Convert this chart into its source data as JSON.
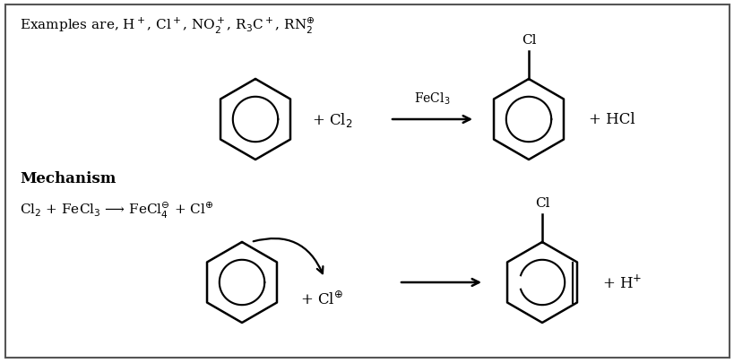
{
  "bg_color": "#ffffff",
  "border_color": "#555555",
  "text_color": "#000000",
  "fig_width": 8.2,
  "fig_height": 4.06,
  "dpi": 100,
  "top_text": "Examples are, H$^+$, Cl$^+$, NO$_2^+$, R$_3$C$^+$, RN$_2^{\\oplus}$",
  "mechanism_label": "Mechanism",
  "mechanism_eq": "Cl$_2$ + FeCl$_3$ ⟶ FeCl$_4^{\\ominus}$ + Cl$^{\\oplus}$",
  "reaction_label": "FeCl$_3$",
  "plus_cl2": "+ Cl$_2$",
  "plus_hcl": "+ HCl",
  "plus_cl_plus": "+ Cl$^{\\oplus}$",
  "plus_h_plus": "+ H$^{+}$",
  "cl_label": "Cl"
}
